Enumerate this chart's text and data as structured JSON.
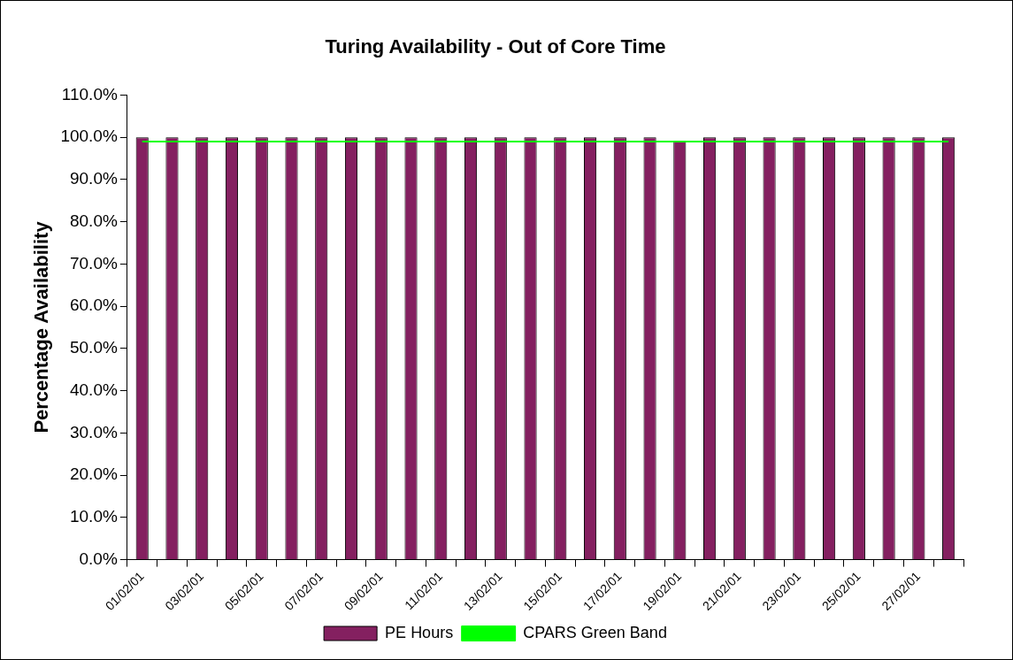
{
  "chart_data": {
    "type": "bar",
    "title": "Turing Availability - Out of Core Time",
    "ylabel": "Percentage Availability",
    "categories": [
      "01/02/01",
      null,
      "03/02/01",
      null,
      "05/02/01",
      null,
      "07/02/01",
      null,
      "09/02/01",
      null,
      "11/02/01",
      null,
      "13/02/01",
      null,
      "15/02/01",
      null,
      "17/02/01",
      null,
      "19/02/01",
      null,
      "21/02/01",
      null,
      "23/02/01",
      null,
      "25/02/01",
      null,
      "27/02/01",
      null
    ],
    "series": [
      {
        "name": "PE Hours",
        "color": "#842060",
        "values": [
          100,
          100,
          100,
          100,
          100,
          100,
          100,
          100,
          100,
          100,
          100,
          100,
          100,
          100,
          100,
          100,
          100,
          100,
          99,
          100,
          100,
          100,
          100,
          100,
          100,
          100,
          100,
          100
        ]
      },
      {
        "name": "CPARS Green Band",
        "type": "line",
        "color": "#00ff00",
        "values": [
          99,
          99,
          99,
          99,
          99,
          99,
          99,
          99,
          99,
          99,
          99,
          99,
          99,
          99,
          99,
          99,
          99,
          99,
          99,
          99,
          99,
          99,
          99,
          99,
          99,
          99,
          99,
          99
        ]
      }
    ],
    "ylim": [
      0,
      110
    ],
    "yticks": [
      {
        "value": 0,
        "label": "0.0%"
      },
      {
        "value": 10,
        "label": "10.0%"
      },
      {
        "value": 20,
        "label": "20.0%"
      },
      {
        "value": 30,
        "label": "30.0%"
      },
      {
        "value": 40,
        "label": "40.0%"
      },
      {
        "value": 50,
        "label": "50.0%"
      },
      {
        "value": 60,
        "label": "60.0%"
      },
      {
        "value": 70,
        "label": "70.0%"
      },
      {
        "value": 80,
        "label": "80.0%"
      },
      {
        "value": 90,
        "label": "90.0%"
      },
      {
        "value": 100,
        "label": "100.0%"
      },
      {
        "value": 110,
        "label": "110.0%"
      }
    ],
    "grid": false,
    "legend": "bottom",
    "marker": "none"
  }
}
